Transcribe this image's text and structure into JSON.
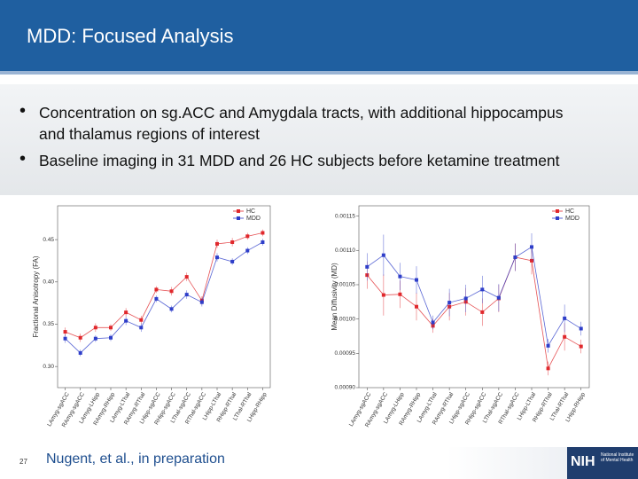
{
  "header": {
    "title": "MDD: Focused Analysis"
  },
  "bullets": [
    "Concentration on sg.ACC and Amygdala tracts, with additional hippocampus and thalamus regions of interest",
    "Baseline imaging in 31 MDD and 26 HC subjects before ketamine treatment"
  ],
  "footer": {
    "page": "27",
    "citation": "Nugent, et al., in preparation",
    "logo": "NIH",
    "logo_sub": "National Institute of Mental Health"
  },
  "chart_data": [
    {
      "type": "line",
      "ylabel": "Fractional Anisotropy (FA)",
      "categories": [
        "LAmyg-sgACC",
        "RAmyg-sgACC",
        "LAmyg-LHipp",
        "RAmyg-RHipp",
        "LAmyg-LThal",
        "RAmyg-RThal",
        "LHipp-sgACC",
        "RHipp-sgACC",
        "LThal-sgACC",
        "RThal-sgACC",
        "LHipp-LThal",
        "RHipp-RThal",
        "LThal-RThal",
        "LHipp-RHipp"
      ],
      "series": [
        {
          "name": "HC",
          "color": "#e0282c",
          "values": [
            0.341,
            0.334,
            0.346,
            0.346,
            0.364,
            0.355,
            0.391,
            0.389,
            0.406,
            0.378,
            0.445,
            0.447,
            0.454,
            0.458
          ],
          "errors": [
            0.005,
            0.005,
            0.005,
            0.004,
            0.005,
            0.005,
            0.004,
            0.005,
            0.005,
            0.005,
            0.005,
            0.005,
            0.004,
            0.004
          ]
        },
        {
          "name": "MDD",
          "color": "#2e3ec9",
          "values": [
            0.333,
            0.316,
            0.333,
            0.334,
            0.354,
            0.346,
            0.38,
            0.368,
            0.385,
            0.376,
            0.429,
            0.424,
            0.437,
            0.447
          ],
          "errors": [
            0.005,
            0.004,
            0.004,
            0.004,
            0.005,
            0.005,
            0.004,
            0.004,
            0.005,
            0.005,
            0.005,
            0.004,
            0.004,
            0.004
          ]
        }
      ],
      "ylim": [
        0.275,
        0.49
      ],
      "yticks": [
        {
          "value": 0.3,
          "label": "0.30"
        },
        0.35,
        {
          "value": 0.4,
          "label": "0.40"
        },
        0.45
      ],
      "legend": "upper right"
    },
    {
      "type": "line",
      "ylabel": "Mean Diffusivity (MD)",
      "categories": [
        "LAmyg-sgACC",
        "RAmyg-sgACC",
        "LAmyg-LHipp",
        "RAmyg-RHipp",
        "LAmyg-LThal",
        "RAmyg-RThal",
        "LHipp-sgACC",
        "RHipp-sgACC",
        "LThal-sgACC",
        "RThal-sgACC",
        "LHipp-LThal",
        "RHipp-RThal",
        "LThal-RThal",
        "LHipp-RHipp"
      ],
      "series": [
        {
          "name": "HC",
          "color": "#e0282c",
          "values": [
            0.001064,
            0.001035,
            0.001036,
            0.001018,
            0.00099,
            0.001018,
            0.001025,
            0.00101,
            0.00103,
            0.00109,
            0.001085,
            0.000928,
            0.000974,
            0.00096
          ],
          "errors": [
            2e-05,
            3e-05,
            2e-05,
            2e-05,
            1e-05,
            2e-05,
            2e-05,
            2e-05,
            2e-05,
            2e-05,
            2e-05,
            1e-05,
            2e-05,
            1e-05
          ]
        },
        {
          "name": "MDD",
          "color": "#2e3ec9",
          "values": [
            0.001076,
            0.001093,
            0.001062,
            0.001057,
            0.000995,
            0.001024,
            0.00103,
            0.001043,
            0.001031,
            0.00109,
            0.001105,
            0.000961,
            0.001001,
            0.000986
          ],
          "errors": [
            2e-05,
            3e-05,
            2e-05,
            2e-05,
            1e-05,
            2e-05,
            2e-05,
            2e-05,
            2e-05,
            2e-05,
            2e-05,
            1e-05,
            2e-05,
            1e-05
          ]
        }
      ],
      "ylim": [
        0.0009,
        0.001165
      ],
      "yticks": [
        {
          "value": 0.0009,
          "label": "0.00090"
        },
        {
          "value": 0.00095,
          "label": "0.00095"
        },
        {
          "value": 0.001,
          "label": "0.00100"
        },
        {
          "value": 0.00105,
          "label": "0.00105"
        },
        {
          "value": 0.0011,
          "label": "0.00110"
        },
        {
          "value": 0.00115,
          "label": "0.00115"
        }
      ],
      "legend": "upper right"
    }
  ]
}
